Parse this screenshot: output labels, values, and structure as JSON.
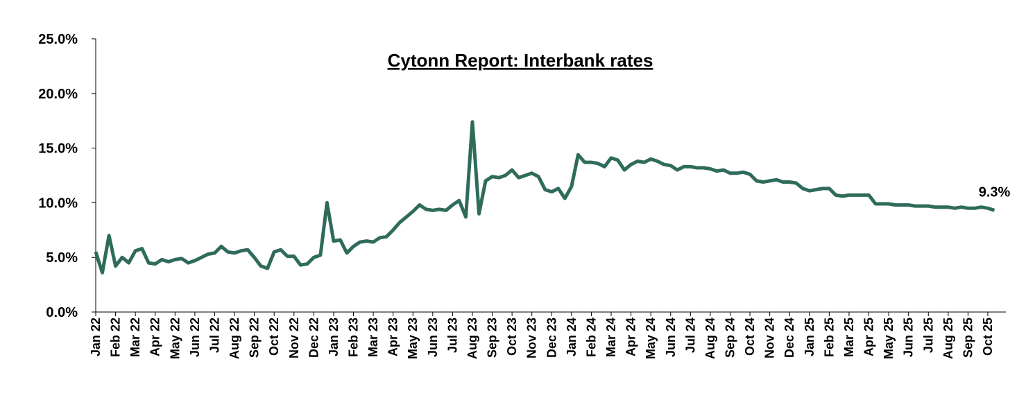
{
  "chart_data": {
    "type": "line",
    "title": "Cytonn Report: Interbank rates",
    "categories": [
      "Jan 22",
      null,
      null,
      "Feb 22",
      null,
      null,
      "Mar 22",
      null,
      null,
      "Apr 22",
      null,
      null,
      "May 22",
      null,
      null,
      "Jun 22",
      null,
      null,
      "Jul 22",
      null,
      null,
      "Aug 22",
      null,
      null,
      "Sep 22",
      null,
      null,
      "Oct 22",
      null,
      null,
      "Nov 22",
      null,
      null,
      "Dec 22",
      null,
      null,
      "Jan 23",
      null,
      null,
      "Feb 23",
      null,
      null,
      "Mar 23",
      null,
      null,
      "Apr 23",
      null,
      null,
      "May 23",
      null,
      null,
      "Jun 23",
      null,
      null,
      "Jul 23",
      null,
      null,
      "Aug 23",
      null,
      null,
      "Sep 23",
      null,
      null,
      "Oct 23",
      null,
      null,
      "Nov 23",
      null,
      null,
      "Dec 23",
      null,
      null,
      "Jan 24",
      null,
      null,
      "Feb 24",
      null,
      null,
      "Mar 24",
      null,
      null,
      "Apr 24",
      null,
      null,
      "May 24",
      null,
      null,
      "Jun 24",
      null,
      null,
      "Jul 24",
      null,
      null,
      "Aug 24",
      null,
      null,
      "Sep 24",
      null,
      null,
      "Oct 24",
      null,
      null,
      "Nov 24",
      null,
      null,
      "Dec 24",
      null,
      null,
      "Jan 25",
      null,
      null,
      "Feb 25",
      null,
      null,
      "Mar 25",
      null,
      null,
      "Apr 25",
      null,
      null,
      "May 25",
      null,
      null,
      "Jun 25",
      null,
      null,
      "Jul 25",
      null,
      null,
      "Aug 25",
      null,
      null,
      "Sep 25",
      null,
      null,
      "Oct 25",
      null
    ],
    "values": [
      5.5,
      3.6,
      7.0,
      4.2,
      5.0,
      4.5,
      5.6,
      5.8,
      4.5,
      4.4,
      4.8,
      4.6,
      4.8,
      4.9,
      4.5,
      4.7,
      5.0,
      5.3,
      5.4,
      6.0,
      5.5,
      5.4,
      5.6,
      5.7,
      5.0,
      4.2,
      4.0,
      5.5,
      5.7,
      5.1,
      5.1,
      4.3,
      4.4,
      5.0,
      5.2,
      10.0,
      6.5,
      6.6,
      5.4,
      6.0,
      6.4,
      6.5,
      6.4,
      6.8,
      6.9,
      7.5,
      8.2,
      8.7,
      9.2,
      9.8,
      9.4,
      9.3,
      9.4,
      9.3,
      9.8,
      10.2,
      8.7,
      17.4,
      9.0,
      12.0,
      12.4,
      12.3,
      12.5,
      13.0,
      12.3,
      12.5,
      12.7,
      12.4,
      11.2,
      11.0,
      11.3,
      10.4,
      11.5,
      14.4,
      13.7,
      13.7,
      13.6,
      13.3,
      14.1,
      13.9,
      13.0,
      13.5,
      13.8,
      13.7,
      14.0,
      13.8,
      13.5,
      13.4,
      13.0,
      13.3,
      13.3,
      13.2,
      13.2,
      13.1,
      12.9,
      13.0,
      12.7,
      12.7,
      12.8,
      12.6,
      12.0,
      11.9,
      12.0,
      12.1,
      11.9,
      11.9,
      11.8,
      11.3,
      11.1,
      11.2,
      11.3,
      11.3,
      10.7,
      10.6,
      10.7,
      10.7,
      10.7,
      10.7,
      9.9,
      9.9,
      9.9,
      9.8,
      9.8,
      9.8,
      9.7,
      9.7,
      9.7,
      9.6,
      9.6,
      9.6,
      9.5,
      9.6,
      9.5,
      9.5,
      9.6,
      9.5,
      9.3
    ],
    "color": "#2f6b5b",
    "annotation": {
      "value": 9.3,
      "label": "9.3%"
    },
    "ylim": [
      0,
      25
    ],
    "yticks": [
      {
        "value": 0,
        "label": "0.0%"
      },
      {
        "value": 5,
        "label": "5.0%"
      },
      {
        "value": 10,
        "label": "10.0%"
      },
      {
        "value": 15,
        "label": "15.0%"
      },
      {
        "value": 20,
        "label": "20.0%"
      },
      {
        "value": 25,
        "label": "25.0%"
      }
    ],
    "grid": false
  }
}
